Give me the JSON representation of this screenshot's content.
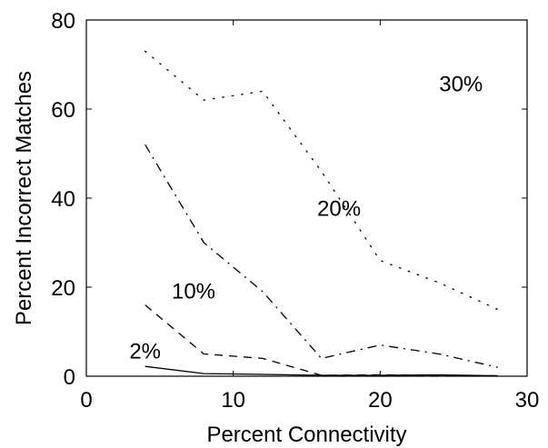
{
  "chart_data": {
    "type": "line",
    "title": "",
    "xlabel": "Percent Connectivity",
    "ylabel": "Percent Incorrect Matches",
    "xlim": [
      0,
      30
    ],
    "ylim": [
      0,
      80
    ],
    "xticks": [
      0,
      10,
      20,
      30
    ],
    "yticks": [
      0,
      20,
      40,
      60,
      80
    ],
    "grid": false,
    "legend": "none",
    "series": [
      {
        "name": "2%",
        "style": "solid",
        "color": "#000000",
        "x": [
          4,
          8,
          12,
          16,
          20,
          24,
          28
        ],
        "y": [
          2.2,
          0.6,
          0.4,
          0.2,
          0.2,
          0.3,
          0.1
        ]
      },
      {
        "name": "10%",
        "style": "dashed",
        "color": "#000000",
        "x": [
          4,
          8,
          12,
          16,
          20,
          24,
          28
        ],
        "y": [
          16,
          5,
          4,
          0.2,
          0.3,
          0.2,
          0.1
        ]
      },
      {
        "name": "20%",
        "style": "dashdot",
        "color": "#000000",
        "x": [
          4,
          8,
          12,
          16,
          20,
          24,
          28
        ],
        "y": [
          52,
          30,
          19,
          4,
          7,
          5,
          2
        ]
      },
      {
        "name": "30%",
        "style": "dotted",
        "color": "#000000",
        "x": [
          4,
          8,
          12,
          16,
          20,
          24,
          28
        ],
        "y": [
          73,
          62,
          64,
          46,
          26,
          21,
          15
        ]
      }
    ],
    "annotations": [
      {
        "text": "2%",
        "x": 4.0,
        "y": 4
      },
      {
        "text": "10%",
        "x": 7.3,
        "y": 17.5
      },
      {
        "text": "20%",
        "x": 17.2,
        "y": 36
      },
      {
        "text": "30%",
        "x": 25.5,
        "y": 64
      }
    ]
  }
}
